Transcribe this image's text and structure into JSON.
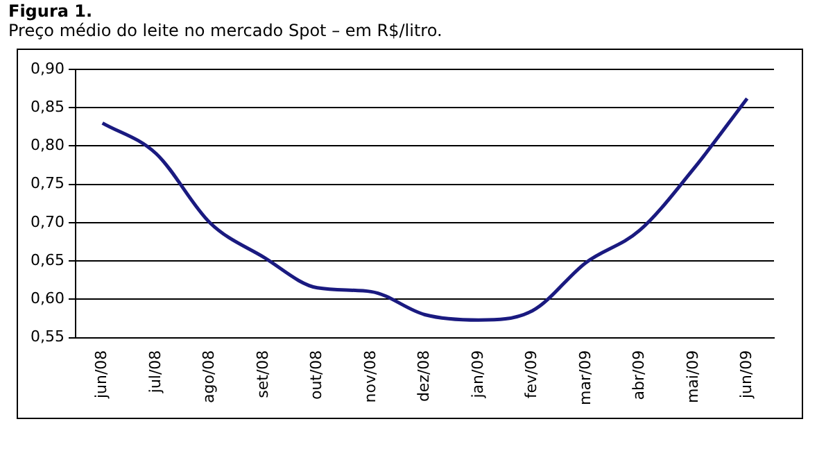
{
  "chart_data": {
    "type": "line",
    "title": "Figura 1.",
    "subtitle": "Preço médio do leite no mercado Spot – em R$/litro.",
    "categories": [
      "jun/08",
      "jul/08",
      "ago/08",
      "set/08",
      "out/08",
      "nov/08",
      "dez/08",
      "jan/09",
      "fev/09",
      "mar/09",
      "abr/09",
      "mai/09",
      "jun/09"
    ],
    "series": [
      {
        "color": "#1a1a80",
        "values": [
          0.83,
          0.79,
          0.7,
          0.655,
          0.615,
          0.61,
          0.58,
          0.573,
          0.585,
          0.648,
          0.69,
          0.77,
          0.862
        ]
      }
    ],
    "ylim": [
      0.55,
      0.9
    ],
    "yticks": [
      {
        "value": 0.55,
        "label": "0,55"
      },
      {
        "value": 0.6,
        "label": "0,60"
      },
      {
        "value": 0.65,
        "label": "0,65"
      },
      {
        "value": 0.7,
        "label": "0,70"
      },
      {
        "value": 0.75,
        "label": "0,75"
      },
      {
        "value": 0.8,
        "label": "0,80"
      },
      {
        "value": 0.85,
        "label": "0,85"
      },
      {
        "value": 0.9,
        "label": "0,90"
      }
    ],
    "grid": "y",
    "legend": false,
    "marker": "none",
    "line_style": "solid"
  }
}
